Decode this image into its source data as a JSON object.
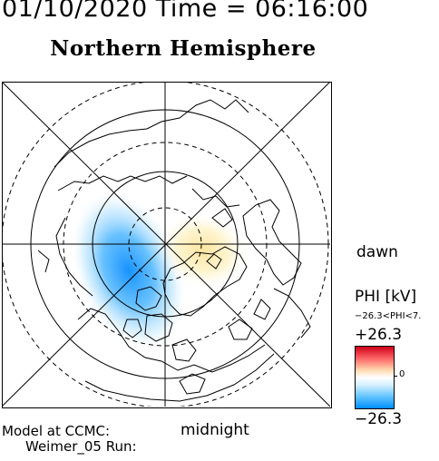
{
  "header": {
    "date_time": "01/10/2020 Time = 06:16:00",
    "title": "Northern Hemisphere"
  },
  "map": {
    "projection": "polar",
    "pattern_labels": {
      "dawn": "dawn",
      "midnight": "midnight"
    }
  },
  "footer": {
    "model": "Model at CCMC:",
    "run": "Weimer_05 Run:"
  },
  "legend": {
    "title": "PHI [kV]",
    "range_text": "−26.3<PHI<7.",
    "max": "+26.3",
    "zero": "0",
    "min": "−26.3",
    "colors": {
      "positive": "#d00018",
      "zero": "#ffffff",
      "negative": "#0090ff"
    }
  }
}
